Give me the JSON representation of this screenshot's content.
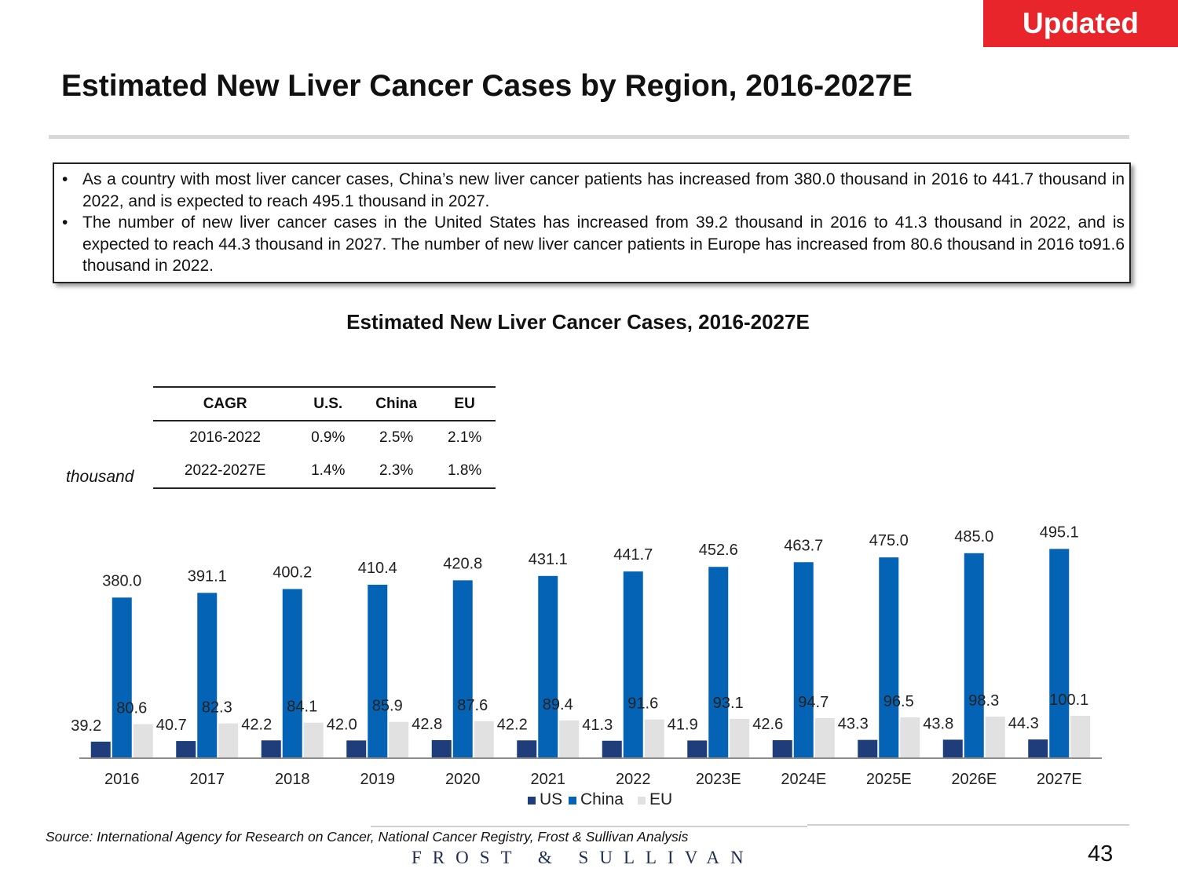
{
  "badge": "Updated",
  "main_title": "Estimated New Liver Cancer Cases by Region, 2016-2027E",
  "bullets": [
    "As a country with most liver cancer cases, China’s new liver cancer patients has increased from 380.0 thousand in 2016 to 441.7 thousand in 2022, and is expected to reach 495.1 thousand in 2027.",
    "The number of new liver cancer cases in the United States has increased from 39.2 thousand in 2016 to 41.3 thousand in 2022, and is expected to reach 44.3 thousand in 2027. The number of new liver cancer patients in Europe has increased from 80.6 thousand in 2016 to91.6 thousand in 2022."
  ],
  "cagr_table": {
    "headers": [
      "CAGR",
      "U.S.",
      "China",
      "EU"
    ],
    "rows": [
      [
        "2016-2022",
        "0.9%",
        "2.5%",
        "2.1%"
      ],
      [
        "2022-2027E",
        "1.4%",
        "2.3%",
        "1.8%"
      ]
    ]
  },
  "unit_label": "thousand",
  "chart_data": {
    "type": "bar",
    "title": "Estimated New Liver Cancer Cases, 2016-2027E",
    "xlabel": "",
    "ylabel": "thousand",
    "ylim": [
      0,
      520
    ],
    "categories": [
      "2016",
      "2017",
      "2018",
      "2019",
      "2020",
      "2021",
      "2022",
      "2023E",
      "2024E",
      "2025E",
      "2026E",
      "2027E"
    ],
    "series": [
      {
        "name": "US",
        "color": "#1f3d7a",
        "values": [
          39.2,
          40.7,
          42.2,
          42.0,
          42.8,
          42.2,
          41.3,
          41.9,
          42.6,
          43.3,
          43.8,
          44.3
        ]
      },
      {
        "name": "China",
        "color": "#0563b5",
        "values": [
          380.0,
          391.1,
          400.2,
          410.4,
          420.8,
          431.1,
          441.7,
          452.6,
          463.7,
          475.0,
          485.0,
          495.1
        ]
      },
      {
        "name": "EU",
        "color": "#e1e1e1",
        "values": [
          80.6,
          82.3,
          84.1,
          85.9,
          87.6,
          89.4,
          91.6,
          93.1,
          94.7,
          96.5,
          98.3,
          100.1
        ]
      }
    ],
    "legend": "bottom-center"
  },
  "source": "Source: International Agency for Research on Cancer, National Cancer Registry, Frost & Sullivan Analysis",
  "brand": "FROST & SULLIVAN",
  "page_number": "43"
}
